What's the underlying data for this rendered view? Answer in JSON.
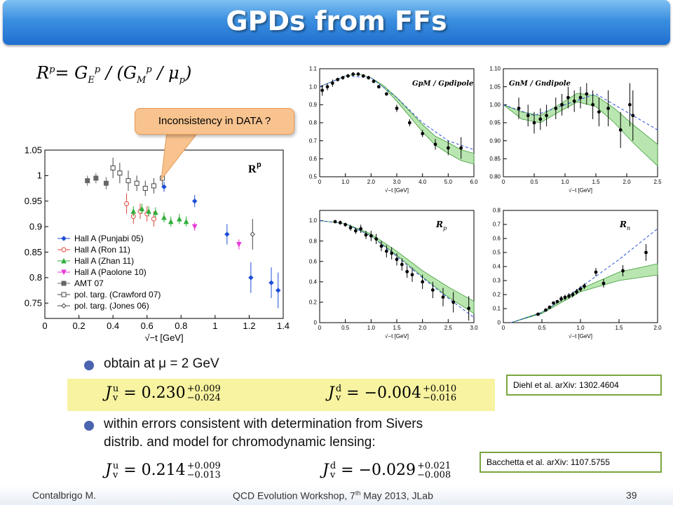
{
  "slide": {
    "title": "GPDs from FFs",
    "formula_rp": {
      "lhs": "R",
      "lhs_sup": "p",
      "rhs": "= G",
      "ge_sub": "E",
      "ge_sup": "p",
      "mid": " / (G",
      "gm_sub": "M",
      "gm_sup": "p",
      "tail": " / μ",
      "mu_sub": "p",
      "close": ")"
    },
    "callout": "Inconsistency in DATA ?",
    "bullet1": "obtain at μ = 2 GeV",
    "bullet2_line1": "within errors consistent with determination from Sivers",
    "bullet2_line2": "distrib. and model for chromodynamic lensing:",
    "eq1_u": {
      "lhs": "J",
      "sup": "u",
      "sub": "v",
      "val": "= 0.230",
      "plus": "+0.009",
      "minus": "−0.024"
    },
    "eq1_d": {
      "lhs": "J",
      "sup": "d",
      "sub": "v",
      "val": "= −0.004",
      "plus": "+0.010",
      "minus": "−0.016"
    },
    "eq2_u": {
      "lhs": "J",
      "sup": "u",
      "sub": "v",
      "val": "= 0.214",
      "plus": "+0.009",
      "minus": "−0.013"
    },
    "eq2_d": {
      "lhs": "J",
      "sup": "d",
      "sub": "v",
      "val": "= −0.029",
      "plus": "+0.021",
      "minus": "−0.008"
    },
    "ref1": "Diehl et al. arXiv: 1302.4604",
    "ref2": "Bacchetta et al. arXiv: 1107.5755",
    "footer_left": "Contalbrigo M.",
    "footer_center_pre": "QCD Evolution Workshop, 7",
    "footer_center_sup": "th",
    "footer_center_post": " May 2013, JLab",
    "footer_right": "39",
    "colors": {
      "title_bar": "#2f80d8",
      "callout": "#f8c38f",
      "highlight": "#f7f3a1",
      "ref_border": "#7aa63e",
      "bullet": "#4a64b0"
    }
  },
  "chart_data": [
    {
      "type": "scatter",
      "title": "R^p",
      "xlabel": "√−t  [GeV]",
      "ylabel": "",
      "xlim": [
        0,
        1.4
      ],
      "ylim": [
        0.72,
        1.05
      ],
      "xticks": [
        "0",
        "0.2",
        "0.4",
        "0.6",
        "0.8",
        "1",
        "1.2",
        "1.4"
      ],
      "xtick_values": [
        0,
        0.2,
        0.4,
        0.6,
        0.8,
        1.0,
        1.2,
        1.4
      ],
      "yticks": [
        "0.75",
        "0.8",
        "0.85",
        "0.9",
        "0.95",
        "1",
        "1.05"
      ],
      "ytick_values": [
        0.75,
        0.8,
        0.85,
        0.9,
        0.95,
        1.0,
        1.05
      ],
      "legend_position": "bottom-left",
      "series": [
        {
          "name": "Hall A (Punjabi 05)",
          "marker": "diamond-filled",
          "color": "#1d4fd6",
          "x": [
            0.7,
            0.88,
            1.07,
            1.21,
            1.33,
            1.37
          ],
          "y": [
            0.978,
            0.95,
            0.885,
            0.8,
            0.79,
            0.775
          ],
          "err": [
            0.01,
            0.012,
            0.02,
            0.03,
            0.03,
            0.035
          ]
        },
        {
          "name": "Hall A (Ron 11)",
          "marker": "circle-open",
          "color": "#e0443a",
          "x": [
            0.48,
            0.52,
            0.56,
            0.6,
            0.64
          ],
          "y": [
            0.945,
            0.92,
            0.93,
            0.925,
            0.915
          ],
          "err": [
            0.02,
            0.015,
            0.015,
            0.015,
            0.015
          ]
        },
        {
          "name": "Hall A (Zhan 11)",
          "marker": "triangle-filled",
          "color": "#2fae3a",
          "x": [
            0.52,
            0.57,
            0.61,
            0.65,
            0.7,
            0.74,
            0.79,
            0.83
          ],
          "y": [
            0.93,
            0.935,
            0.93,
            0.928,
            0.918,
            0.91,
            0.915,
            0.91
          ],
          "err": [
            0.01,
            0.01,
            0.01,
            0.01,
            0.01,
            0.01,
            0.01,
            0.01
          ]
        },
        {
          "name": "Hall A (Paolone 10)",
          "marker": "triangle-down-filled",
          "color": "#e83ad6",
          "x": [
            0.88,
            1.14
          ],
          "y": [
            0.9,
            0.865
          ],
          "err": [
            0.008,
            0.01
          ]
        },
        {
          "name": "AMT 07",
          "marker": "square-filled",
          "color": "#666666",
          "x": [
            0.25,
            0.3,
            0.36
          ],
          "y": [
            0.99,
            0.995,
            0.985
          ],
          "err": [
            0.01,
            0.01,
            0.012
          ]
        },
        {
          "name": "pol. targ. (Crawford 07)",
          "marker": "square-open",
          "color": "#444444",
          "x": [
            0.4,
            0.44,
            0.49,
            0.54,
            0.59,
            0.64,
            0.69
          ],
          "y": [
            1.015,
            1.005,
            0.99,
            0.985,
            0.975,
            0.98,
            0.995
          ],
          "err": [
            0.02,
            0.02,
            0.02,
            0.015,
            0.015,
            0.015,
            0.015
          ]
        },
        {
          "name": "pol. targ. (Jones 06)",
          "marker": "diamond-open",
          "color": "#444444",
          "x": [
            1.22
          ],
          "y": [
            0.885
          ],
          "err": [
            0.03
          ]
        }
      ]
    },
    {
      "type": "line",
      "title": "G^p_M / G^p_dipole",
      "xlabel": "√−t  [GeV]",
      "xlim": [
        0,
        6
      ],
      "ylim": [
        0.5,
        1.1
      ],
      "xticks": [
        "0",
        "1.0",
        "2.0",
        "3.0",
        "4.0",
        "5.0",
        "6.0"
      ],
      "xtick_values": [
        0,
        1,
        2,
        3,
        4,
        5,
        6
      ],
      "yticks": [
        "0.5",
        "0.6",
        "0.7",
        "0.8",
        "0.9",
        "1.0",
        "1.1"
      ],
      "ytick_values": [
        0.5,
        0.6,
        0.7,
        0.8,
        0.9,
        1.0,
        1.1
      ],
      "points": {
        "x": [
          0.1,
          0.3,
          0.5,
          0.7,
          0.9,
          1.1,
          1.3,
          1.5,
          1.7,
          1.9,
          2.1,
          2.3,
          2.6,
          3.0,
          3.5,
          4.0,
          4.5,
          5.0,
          5.5
        ],
        "y": [
          0.98,
          1.0,
          1.02,
          1.04,
          1.05,
          1.06,
          1.07,
          1.07,
          1.06,
          1.05,
          1.03,
          1.0,
          0.96,
          0.88,
          0.8,
          0.74,
          0.68,
          0.66,
          0.66
        ],
        "err": [
          0.03,
          0.02,
          0.02,
          0.01,
          0.01,
          0.01,
          0.01,
          0.01,
          0.01,
          0.01,
          0.01,
          0.01,
          0.01,
          0.02,
          0.02,
          0.02,
          0.03,
          0.04,
          0.06
        ]
      },
      "band_center": {
        "x": [
          0,
          0.5,
          1,
          1.5,
          2,
          2.5,
          3,
          3.5,
          4,
          4.5,
          5,
          5.5,
          6
        ],
        "y": [
          1.0,
          1.03,
          1.06,
          1.07,
          1.05,
          1.0,
          0.93,
          0.85,
          0.77,
          0.7,
          0.66,
          0.62,
          0.6
        ]
      },
      "band_halfwidth": [
        0,
        0,
        0,
        0,
        0,
        0.005,
        0.01,
        0.015,
        0.02,
        0.025,
        0.03,
        0.03,
        0.03
      ],
      "dashed": {
        "x": [
          0,
          1,
          2,
          3,
          4,
          5,
          6
        ],
        "y": [
          1.0,
          1.06,
          1.05,
          0.94,
          0.8,
          0.7,
          0.65
        ]
      }
    },
    {
      "type": "line",
      "title": "G^n_M / G^n_dipole",
      "xlabel": "√−t  [GeV]",
      "xlim": [
        0,
        2.5
      ],
      "ylim": [
        0.8,
        1.1
      ],
      "xticks": [
        "0",
        "0.5",
        "1.0",
        "1.5",
        "2.0",
        "2.5"
      ],
      "xtick_values": [
        0,
        0.5,
        1.0,
        1.5,
        2.0,
        2.5
      ],
      "yticks": [
        "0.80",
        "0.85",
        "0.90",
        "0.95",
        "1.00",
        "1.05",
        "1.10"
      ],
      "ytick_values": [
        0.8,
        0.85,
        0.9,
        0.95,
        1.0,
        1.05,
        1.1
      ],
      "points": {
        "x": [
          0.25,
          0.4,
          0.5,
          0.6,
          0.7,
          0.85,
          0.95,
          1.05,
          1.15,
          1.25,
          1.35,
          1.45,
          1.55,
          1.7,
          1.9,
          2.05,
          2.1
        ],
        "y": [
          0.99,
          0.97,
          0.95,
          0.96,
          0.97,
          0.99,
          1.0,
          1.02,
          1.01,
          1.02,
          1.03,
          1.0,
          0.98,
          0.99,
          0.93,
          1.0,
          0.97
        ],
        "err": [
          0.03,
          0.03,
          0.03,
          0.03,
          0.03,
          0.03,
          0.03,
          0.03,
          0.03,
          0.03,
          0.03,
          0.04,
          0.04,
          0.05,
          0.05,
          0.06,
          0.07
        ]
      },
      "band_center": {
        "x": [
          0,
          0.3,
          0.6,
          0.9,
          1.2,
          1.5,
          1.8,
          2.1,
          2.5
        ],
        "y": [
          1.0,
          0.97,
          0.96,
          0.99,
          1.02,
          1.01,
          0.97,
          0.92,
          0.86
        ]
      },
      "band_halfwidth": [
        0,
        0.01,
        0.01,
        0.01,
        0.012,
        0.015,
        0.02,
        0.025,
        0.03
      ],
      "dashed": {
        "x": [
          0,
          0.5,
          1.0,
          1.5,
          2.0,
          2.5
        ],
        "y": [
          1.0,
          0.97,
          1.0,
          1.03,
          0.98,
          0.93
        ]
      }
    },
    {
      "type": "line",
      "title": "R_p",
      "xlabel": "√−t  [GeV]",
      "xlim": [
        0,
        3.0
      ],
      "ylim": [
        0,
        1.1
      ],
      "xticks": [
        "0",
        "0.5",
        "1.0",
        "1.5",
        "2.0",
        "2.5",
        "3.0"
      ],
      "xtick_values": [
        0,
        0.5,
        1.0,
        1.5,
        2.0,
        2.5,
        3.0
      ],
      "yticks": [
        "0",
        "0.2",
        "0.4",
        "0.6",
        "0.8",
        "1.0"
      ],
      "ytick_values": [
        0,
        0.2,
        0.4,
        0.6,
        0.8,
        1.0
      ],
      "points": {
        "x": [
          0.3,
          0.4,
          0.5,
          0.6,
          0.7,
          0.8,
          0.9,
          1.0,
          1.1,
          1.2,
          1.3,
          1.4,
          1.5,
          1.6,
          1.7,
          1.8,
          2.0,
          2.2,
          2.4,
          2.6,
          2.9
        ],
        "y": [
          0.99,
          0.98,
          0.96,
          0.93,
          0.9,
          0.92,
          0.86,
          0.85,
          0.82,
          0.75,
          0.7,
          0.68,
          0.62,
          0.57,
          0.5,
          0.47,
          0.4,
          0.32,
          0.25,
          0.2,
          0.14
        ],
        "err": [
          0.01,
          0.02,
          0.02,
          0.03,
          0.03,
          0.04,
          0.04,
          0.05,
          0.05,
          0.05,
          0.06,
          0.06,
          0.06,
          0.06,
          0.06,
          0.07,
          0.07,
          0.08,
          0.09,
          0.1,
          0.12
        ]
      },
      "band_center": {
        "x": [
          0,
          0.5,
          1.0,
          1.5,
          2.0,
          2.5,
          3.0
        ],
        "y": [
          1.0,
          0.97,
          0.86,
          0.68,
          0.48,
          0.3,
          0.15
        ]
      },
      "band_halfwidth": [
        0,
        0,
        0.01,
        0.02,
        0.03,
        0.05,
        0.06
      ],
      "dashed": {
        "x": [
          0,
          0.5,
          1.0,
          1.5,
          2.0,
          2.5,
          3.0
        ],
        "y": [
          1.0,
          0.97,
          0.85,
          0.65,
          0.44,
          0.24,
          0.05
        ]
      }
    },
    {
      "type": "line",
      "title": "R_n",
      "xlabel": "√−t  [GeV]",
      "xlim": [
        0,
        2.0
      ],
      "ylim": [
        0,
        0.8
      ],
      "xticks": [
        "0",
        "0.5",
        "1.0",
        "1.5",
        "2.0"
      ],
      "xtick_values": [
        0,
        0.5,
        1.0,
        1.5,
        2.0
      ],
      "yticks": [
        "0",
        "0.1",
        "0.2",
        "0.3",
        "0.4",
        "0.5",
        "0.6",
        "0.7",
        "0.8"
      ],
      "ytick_values": [
        0,
        0.1,
        0.2,
        0.3,
        0.4,
        0.5,
        0.6,
        0.7,
        0.8
      ],
      "points": {
        "x": [
          0.45,
          0.55,
          0.6,
          0.65,
          0.7,
          0.75,
          0.8,
          0.85,
          0.9,
          0.95,
          1.0,
          1.05,
          1.2,
          1.3,
          1.55,
          1.85
        ],
        "y": [
          0.06,
          0.09,
          0.11,
          0.14,
          0.15,
          0.17,
          0.18,
          0.19,
          0.2,
          0.22,
          0.24,
          0.26,
          0.36,
          0.28,
          0.37,
          0.5
        ],
        "err": [
          0.01,
          0.01,
          0.01,
          0.01,
          0.01,
          0.02,
          0.02,
          0.02,
          0.02,
          0.02,
          0.02,
          0.02,
          0.03,
          0.03,
          0.04,
          0.06
        ]
      },
      "band_center": {
        "x": [
          0.1,
          0.5,
          1.0,
          1.5,
          2.0
        ],
        "y": [
          0.0,
          0.07,
          0.23,
          0.33,
          0.38
        ]
      },
      "band_halfwidth": [
        0,
        0.005,
        0.01,
        0.03,
        0.04
      ],
      "dashed": {
        "x": [
          0.1,
          0.5,
          1.0,
          1.5,
          2.0
        ],
        "y": [
          0.0,
          0.07,
          0.25,
          0.45,
          0.67
        ]
      }
    }
  ]
}
